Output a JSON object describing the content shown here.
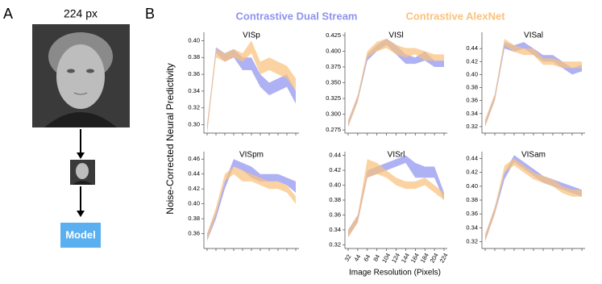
{
  "panels": {
    "a_label": "A",
    "b_label": "B",
    "resolution": "224 px",
    "model": "Model"
  },
  "legend": [
    {
      "name": "Contrastive Dual Stream",
      "color": "#8f93ee"
    },
    {
      "name": "Contrastive AlexNet",
      "color": "#f9c27e"
    }
  ],
  "ylabel": "Noise-Corrected Neural Predictivity",
  "xlabel": "Image Resolution (Pixels)",
  "x_categories": [
    32,
    44,
    64,
    84,
    104,
    124,
    144,
    164,
    184,
    204,
    224
  ],
  "chart_data": [
    {
      "type": "band",
      "title": "VISp",
      "ylim": [
        0.29,
        0.41
      ],
      "yticks": [
        {
          "value": 0.3,
          "label": "0.30"
        },
        0.32,
        0.34,
        0.36,
        0.38,
        {
          "value": 0.4,
          "label": "0.40"
        }
      ],
      "series": [
        {
          "lower": [
            0.29,
            0.385,
            0.375,
            0.38,
            0.365,
            0.365,
            0.345,
            0.335,
            0.34,
            0.345,
            0.325
          ],
          "upper": [
            0.3,
            0.392,
            0.385,
            0.39,
            0.38,
            0.38,
            0.36,
            0.35,
            0.355,
            0.36,
            0.34
          ]
        },
        {
          "lower": [
            0.29,
            0.38,
            0.375,
            0.38,
            0.375,
            0.385,
            0.36,
            0.365,
            0.36,
            0.355,
            0.34
          ],
          "upper": [
            0.3,
            0.39,
            0.385,
            0.39,
            0.385,
            0.4,
            0.375,
            0.38,
            0.375,
            0.37,
            0.355
          ]
        }
      ]
    },
    {
      "type": "band",
      "title": "VISl",
      "ylim": [
        0.27,
        0.43
      ],
      "yticks": [
        0.275,
        {
          "value": 0.3,
          "label": "0.300"
        },
        0.325,
        {
          "value": 0.35,
          "label": "0.350"
        },
        0.375,
        {
          "value": 0.4,
          "label": "0.400"
        },
        0.425
      ],
      "series": [
        {
          "lower": [
            0.28,
            0.32,
            0.385,
            0.4,
            0.41,
            0.395,
            0.38,
            0.38,
            0.385,
            0.375,
            0.375
          ],
          "upper": [
            0.29,
            0.33,
            0.395,
            0.41,
            0.42,
            0.41,
            0.395,
            0.39,
            0.4,
            0.385,
            0.385
          ]
        },
        {
          "lower": [
            0.28,
            0.32,
            0.39,
            0.4,
            0.405,
            0.395,
            0.39,
            0.395,
            0.385,
            0.385,
            0.385
          ],
          "upper": [
            0.29,
            0.33,
            0.4,
            0.415,
            0.42,
            0.41,
            0.405,
            0.405,
            0.4,
            0.395,
            0.395
          ]
        }
      ]
    },
    {
      "type": "band",
      "title": "VISal",
      "ylim": [
        0.31,
        0.465
      ],
      "yticks": [
        0.32,
        0.34,
        0.36,
        0.38,
        {
          "value": 0.4,
          "label": "0.40"
        },
        0.42,
        0.44
      ],
      "series": [
        {
          "lower": [
            0.32,
            0.36,
            0.44,
            0.435,
            0.44,
            0.43,
            0.42,
            0.42,
            0.41,
            0.4,
            0.405
          ],
          "upper": [
            0.33,
            0.37,
            0.45,
            0.445,
            0.45,
            0.44,
            0.43,
            0.43,
            0.42,
            0.41,
            0.415
          ]
        },
        {
          "lower": [
            0.32,
            0.36,
            0.445,
            0.435,
            0.43,
            0.43,
            0.415,
            0.415,
            0.41,
            0.41,
            0.41
          ],
          "upper": [
            0.33,
            0.37,
            0.455,
            0.445,
            0.44,
            0.44,
            0.425,
            0.425,
            0.42,
            0.42,
            0.42
          ]
        }
      ]
    },
    {
      "type": "band",
      "title": "VISpm",
      "ylim": [
        0.34,
        0.47
      ],
      "yticks": [
        0.36,
        0.38,
        {
          "value": 0.4,
          "label": "0.40"
        },
        0.42,
        0.44,
        0.46
      ],
      "series": [
        {
          "lower": [
            0.35,
            0.38,
            0.42,
            0.45,
            0.445,
            0.435,
            0.43,
            0.43,
            0.43,
            0.425,
            0.415
          ],
          "upper": [
            0.36,
            0.39,
            0.43,
            0.46,
            0.455,
            0.45,
            0.44,
            0.44,
            0.44,
            0.435,
            0.43
          ]
        },
        {
          "lower": [
            0.35,
            0.385,
            0.43,
            0.44,
            0.43,
            0.43,
            0.425,
            0.42,
            0.42,
            0.415,
            0.4
          ],
          "upper": [
            0.36,
            0.395,
            0.44,
            0.45,
            0.445,
            0.44,
            0.435,
            0.43,
            0.43,
            0.425,
            0.41
          ]
        }
      ]
    },
    {
      "type": "band",
      "title": "VISrl",
      "ylim": [
        0.315,
        0.445
      ],
      "yticks": [
        0.32,
        0.34,
        0.36,
        0.38,
        {
          "value": 0.4,
          "label": "0.40"
        },
        0.42,
        0.44
      ],
      "series": [
        {
          "lower": [
            0.33,
            0.35,
            0.41,
            0.415,
            0.42,
            0.425,
            0.43,
            0.41,
            0.41,
            0.41,
            0.38
          ],
          "upper": [
            0.34,
            0.36,
            0.42,
            0.425,
            0.43,
            0.435,
            0.44,
            0.43,
            0.425,
            0.425,
            0.39
          ]
        },
        {
          "lower": [
            0.33,
            0.35,
            0.41,
            0.415,
            0.41,
            0.4,
            0.395,
            0.395,
            0.4,
            0.39,
            0.38
          ],
          "upper": [
            0.34,
            0.36,
            0.435,
            0.43,
            0.42,
            0.41,
            0.405,
            0.405,
            0.41,
            0.4,
            0.39
          ]
        }
      ]
    },
    {
      "type": "band",
      "title": "VISam",
      "ylim": [
        0.31,
        0.45
      ],
      "yticks": [
        0.32,
        0.34,
        0.36,
        0.38,
        {
          "value": 0.4,
          "label": "0.40"
        },
        0.42,
        0.44
      ],
      "series": [
        {
          "lower": [
            0.32,
            0.36,
            0.41,
            0.435,
            0.425,
            0.415,
            0.405,
            0.4,
            0.395,
            0.39,
            0.385
          ],
          "upper": [
            0.33,
            0.37,
            0.42,
            0.445,
            0.435,
            0.425,
            0.415,
            0.41,
            0.405,
            0.4,
            0.395
          ]
        },
        {
          "lower": [
            0.32,
            0.36,
            0.42,
            0.43,
            0.42,
            0.41,
            0.405,
            0.4,
            0.39,
            0.385,
            0.385
          ],
          "upper": [
            0.33,
            0.37,
            0.43,
            0.44,
            0.43,
            0.42,
            0.415,
            0.41,
            0.4,
            0.395,
            0.395
          ]
        }
      ]
    }
  ]
}
